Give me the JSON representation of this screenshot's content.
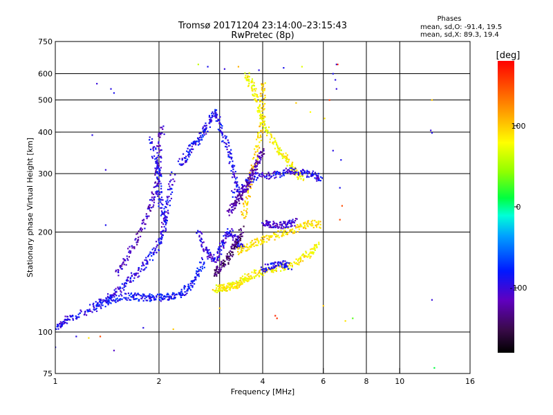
{
  "header": {
    "title": "Tromsø 20171204 23:14:00–23:15:43",
    "subtitle": "RwPretec (8p)",
    "stats_title": "Phases",
    "stats_line1": "mean, sd,O: -91.4, 19.5",
    "stats_line2": "mean, sd,X:  89.3, 19.4"
  },
  "colorbar": {
    "label": "[deg]",
    "range": [
      -180,
      180
    ],
    "ticks": [
      {
        "value": 100,
        "label": "100"
      },
      {
        "value": 0,
        "label": "0"
      },
      {
        "value": -100,
        "label": "-100"
      }
    ]
  },
  "chart_data": {
    "type": "scatter",
    "xlabel": "Frequency [MHz]",
    "ylabel": "Stationary phase Virtual Height [km]",
    "xscale": "log",
    "yscale": "log",
    "xlim": [
      1,
      16
    ],
    "ylim": [
      75,
      750
    ],
    "grid": true,
    "x_ticks": [
      {
        "value": 1,
        "label": "1",
        "grid": false
      },
      {
        "value": 2,
        "label": "2",
        "grid": true
      },
      {
        "value": 4,
        "label": "4",
        "grid": true
      },
      {
        "value": 6,
        "label": "6",
        "grid": true
      },
      {
        "value": 8,
        "label": "8",
        "grid": true
      },
      {
        "value": 10,
        "label": "10",
        "grid": true
      },
      {
        "value": 16,
        "label": "16",
        "grid": false
      }
    ],
    "x_minor_grid": [
      3
    ],
    "y_ticks": [
      {
        "value": 75,
        "label": "75",
        "grid": false
      },
      {
        "value": 100,
        "label": "100",
        "grid": true
      },
      {
        "value": 200,
        "label": "200",
        "grid": true
      },
      {
        "value": 300,
        "label": "300",
        "grid": true
      },
      {
        "value": 400,
        "label": "400",
        "grid": true
      },
      {
        "value": 500,
        "label": "500",
        "grid": true
      },
      {
        "value": 600,
        "label": "600",
        "grid": true
      },
      {
        "value": 750,
        "label": "750",
        "grid": false
      }
    ],
    "traces": [
      {
        "phase": -95,
        "points": [
          [
            1.0,
            103
          ],
          [
            1.05,
            107
          ],
          [
            1.1,
            110
          ],
          [
            1.2,
            114
          ],
          [
            1.3,
            120
          ],
          [
            1.4,
            126
          ],
          [
            1.5,
            132
          ],
          [
            1.6,
            140
          ],
          [
            1.7,
            148
          ],
          [
            1.8,
            158
          ],
          [
            1.9,
            170
          ],
          [
            2.0,
            185
          ],
          [
            2.05,
            200
          ],
          [
            2.1,
            225
          ],
          [
            2.15,
            260
          ],
          [
            2.2,
            300
          ]
        ]
      },
      {
        "phase": -110,
        "points": [
          [
            1.5,
            150
          ],
          [
            1.6,
            165
          ],
          [
            1.7,
            185
          ],
          [
            1.8,
            210
          ],
          [
            1.9,
            240
          ],
          [
            1.95,
            270
          ],
          [
            2.0,
            310
          ],
          [
            2.0,
            360
          ],
          [
            2.05,
            420
          ]
        ]
      },
      {
        "phase": -85,
        "points": [
          [
            1.3,
            118
          ],
          [
            1.4,
            122
          ],
          [
            1.5,
            126
          ],
          [
            1.6,
            128
          ],
          [
            1.7,
            128
          ],
          [
            1.8,
            127
          ],
          [
            1.9,
            127
          ],
          [
            2.0,
            127
          ],
          [
            2.1,
            128
          ],
          [
            2.2,
            128
          ],
          [
            2.3,
            130
          ],
          [
            2.4,
            134
          ],
          [
            2.5,
            140
          ],
          [
            2.6,
            150
          ],
          [
            2.7,
            165
          ]
        ]
      },
      {
        "phase": -90,
        "points": [
          [
            2.3,
            320
          ],
          [
            2.4,
            340
          ],
          [
            2.5,
            360
          ],
          [
            2.6,
            380
          ],
          [
            2.7,
            400
          ],
          [
            2.8,
            430
          ],
          [
            2.9,
            460
          ],
          [
            3.0,
            420
          ],
          [
            3.1,
            380
          ],
          [
            3.2,
            340
          ],
          [
            3.3,
            300
          ],
          [
            3.4,
            270
          ]
        ]
      },
      {
        "phase": -100,
        "points": [
          [
            2.6,
            200
          ],
          [
            2.7,
            180
          ],
          [
            2.8,
            170
          ],
          [
            2.9,
            165
          ],
          [
            3.0,
            175
          ],
          [
            3.1,
            190
          ],
          [
            3.2,
            200
          ],
          [
            3.3,
            195
          ],
          [
            3.4,
            185
          ],
          [
            3.5,
            178
          ]
        ]
      },
      {
        "phase": 85,
        "points": [
          [
            2.9,
            135
          ],
          [
            3.0,
            135
          ],
          [
            3.1,
            136
          ],
          [
            3.2,
            137
          ],
          [
            3.3,
            138
          ],
          [
            3.4,
            140
          ],
          [
            3.5,
            143
          ],
          [
            3.6,
            146
          ],
          [
            3.8,
            150
          ],
          [
            4.0,
            152
          ],
          [
            4.3,
            155
          ],
          [
            4.6,
            158
          ],
          [
            5.0,
            162
          ],
          [
            5.3,
            168
          ],
          [
            5.6,
            175
          ],
          [
            5.8,
            185
          ]
        ]
      },
      {
        "phase": 90,
        "points": [
          [
            3.4,
            175
          ],
          [
            3.6,
            180
          ],
          [
            3.8,
            185
          ],
          [
            4.0,
            190
          ],
          [
            4.3,
            195
          ],
          [
            4.6,
            200
          ],
          [
            5.0,
            205
          ],
          [
            5.3,
            210
          ],
          [
            5.6,
            212
          ],
          [
            5.9,
            210
          ]
        ]
      },
      {
        "phase": 95,
        "points": [
          [
            3.5,
            220
          ],
          [
            3.6,
            250
          ],
          [
            3.7,
            290
          ],
          [
            3.8,
            330
          ],
          [
            3.9,
            380
          ],
          [
            4.0,
            430
          ],
          [
            4.0,
            500
          ],
          [
            4.0,
            560
          ]
        ]
      },
      {
        "phase": 80,
        "points": [
          [
            3.6,
            600
          ],
          [
            3.7,
            560
          ],
          [
            3.8,
            520
          ],
          [
            3.9,
            480
          ],
          [
            4.0,
            430
          ],
          [
            4.2,
            390
          ],
          [
            4.4,
            360
          ],
          [
            4.6,
            340
          ],
          [
            4.8,
            320
          ],
          [
            5.0,
            300
          ],
          [
            5.2,
            290
          ]
        ]
      },
      {
        "phase": -95,
        "points": [
          [
            3.3,
            260
          ],
          [
            3.5,
            270
          ],
          [
            3.7,
            290
          ],
          [
            3.9,
            300
          ],
          [
            4.2,
            295
          ],
          [
            4.5,
            300
          ],
          [
            4.8,
            305
          ],
          [
            5.1,
            305
          ],
          [
            5.4,
            300
          ],
          [
            5.7,
            295
          ],
          [
            5.9,
            285
          ]
        ]
      },
      {
        "phase": -105,
        "points": [
          [
            4.0,
            215
          ],
          [
            4.2,
            212
          ],
          [
            4.4,
            210
          ],
          [
            4.6,
            210
          ],
          [
            4.8,
            212
          ],
          [
            5.0,
            215
          ]
        ]
      },
      {
        "phase": -90,
        "points": [
          [
            4.0,
            155
          ],
          [
            4.2,
            158
          ],
          [
            4.4,
            160
          ],
          [
            4.6,
            160
          ],
          [
            4.8,
            158
          ]
        ]
      },
      {
        "phase": -120,
        "points": [
          [
            3.2,
            230
          ],
          [
            3.3,
            240
          ],
          [
            3.4,
            250
          ],
          [
            3.5,
            262
          ],
          [
            3.6,
            275
          ],
          [
            3.7,
            290
          ],
          [
            3.8,
            310
          ],
          [
            3.9,
            330
          ],
          [
            4.0,
            350
          ]
        ]
      },
      {
        "phase": -140,
        "points": [
          [
            2.9,
            150
          ],
          [
            3.0,
            155
          ],
          [
            3.1,
            162
          ],
          [
            3.2,
            170
          ],
          [
            3.3,
            180
          ],
          [
            3.4,
            190
          ],
          [
            3.5,
            205
          ]
        ]
      },
      {
        "phase": -90,
        "points": [
          [
            1.9,
            380
          ],
          [
            1.95,
            330
          ],
          [
            2.0,
            300
          ],
          [
            2.0,
            260
          ],
          [
            2.05,
            230
          ],
          [
            2.1,
            210
          ]
        ]
      }
    ],
    "scatter": [
      {
        "x": 1.32,
        "y": 560,
        "phase": -100
      },
      {
        "x": 1.48,
        "y": 525,
        "phase": -90
      },
      {
        "x": 1.45,
        "y": 540,
        "phase": -95
      },
      {
        "x": 1.28,
        "y": 392,
        "phase": -95
      },
      {
        "x": 1.4,
        "y": 308,
        "phase": -100
      },
      {
        "x": 1.4,
        "y": 210,
        "phase": -90
      },
      {
        "x": 2.6,
        "y": 640,
        "phase": 60
      },
      {
        "x": 2.77,
        "y": 630,
        "phase": -90
      },
      {
        "x": 3.1,
        "y": 620,
        "phase": -100
      },
      {
        "x": 3.4,
        "y": 630,
        "phase": 110
      },
      {
        "x": 3.9,
        "y": 615,
        "phase": -95
      },
      {
        "x": 4.6,
        "y": 625,
        "phase": -90
      },
      {
        "x": 5.2,
        "y": 630,
        "phase": 70
      },
      {
        "x": 6.55,
        "y": 640,
        "phase": -90
      },
      {
        "x": 6.6,
        "y": 640,
        "phase": 170
      },
      {
        "x": 6.4,
        "y": 600,
        "phase": -90
      },
      {
        "x": 6.5,
        "y": 575,
        "phase": -95
      },
      {
        "x": 6.55,
        "y": 540,
        "phase": -100
      },
      {
        "x": 6.25,
        "y": 500,
        "phase": 160
      },
      {
        "x": 6.05,
        "y": 440,
        "phase": 90
      },
      {
        "x": 6.4,
        "y": 352,
        "phase": -95
      },
      {
        "x": 6.75,
        "y": 330,
        "phase": -90
      },
      {
        "x": 6.7,
        "y": 272,
        "phase": -90
      },
      {
        "x": 6.8,
        "y": 240,
        "phase": 150
      },
      {
        "x": 6.7,
        "y": 218,
        "phase": 150
      },
      {
        "x": 5.0,
        "y": 490,
        "phase": 100
      },
      {
        "x": 5.5,
        "y": 460,
        "phase": 80
      },
      {
        "x": 6.95,
        "y": 108,
        "phase": 90
      },
      {
        "x": 6.0,
        "y": 120,
        "phase": 100
      },
      {
        "x": 7.3,
        "y": 110,
        "phase": 30
      },
      {
        "x": 4.4,
        "y": 110,
        "phase": 160
      },
      {
        "x": 4.35,
        "y": 112,
        "phase": 165
      },
      {
        "x": 3.0,
        "y": 118,
        "phase": 100
      },
      {
        "x": 12.4,
        "y": 500,
        "phase": 100
      },
      {
        "x": 12.3,
        "y": 405,
        "phase": -100
      },
      {
        "x": 12.4,
        "y": 398,
        "phase": -90
      },
      {
        "x": 12.4,
        "y": 125,
        "phase": -100
      },
      {
        "x": 12.6,
        "y": 78,
        "phase": 10
      },
      {
        "x": 1.0,
        "y": 90,
        "phase": -90
      },
      {
        "x": 1.15,
        "y": 97,
        "phase": -95
      },
      {
        "x": 1.25,
        "y": 96,
        "phase": 90
      },
      {
        "x": 1.35,
        "y": 97,
        "phase": 150
      },
      {
        "x": 1.48,
        "y": 88,
        "phase": -110
      },
      {
        "x": 2.2,
        "y": 102,
        "phase": 100
      },
      {
        "x": 1.8,
        "y": 103,
        "phase": -95
      }
    ]
  }
}
